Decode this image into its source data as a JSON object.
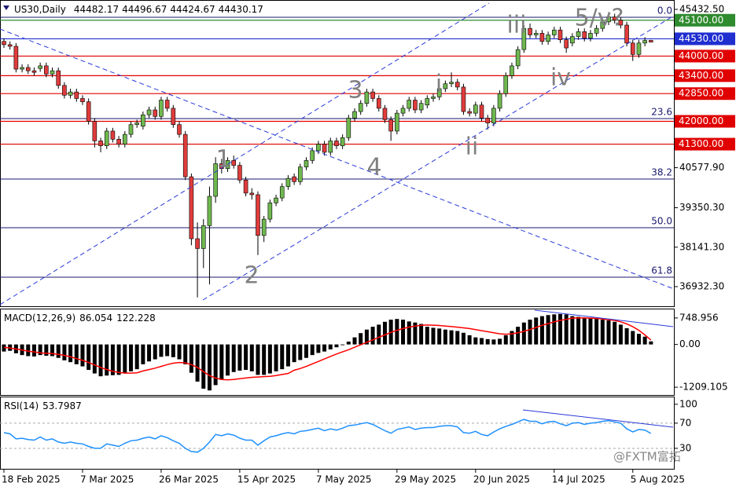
{
  "chart_data": [
    {
      "type": "candlestick",
      "title": "US30,Daily",
      "up_color": "#6fb84f",
      "down_color": "#e03c3c",
      "wick_color": "#000000",
      "categories": [
        "18 Feb 2025",
        null,
        null,
        null,
        null,
        null,
        null,
        null,
        null,
        null,
        null,
        null,
        null,
        "7 Mar 2025",
        null,
        null,
        null,
        null,
        null,
        null,
        null,
        null,
        null,
        null,
        null,
        null,
        "26 Mar 2025",
        null,
        null,
        null,
        null,
        null,
        null,
        null,
        null,
        null,
        null,
        null,
        null,
        "15 Apr 2025",
        null,
        null,
        null,
        null,
        null,
        null,
        null,
        null,
        null,
        null,
        null,
        null,
        "7 May 2025",
        null,
        null,
        null,
        null,
        null,
        null,
        null,
        null,
        null,
        null,
        null,
        null,
        "29 May 2025",
        null,
        null,
        null,
        null,
        null,
        null,
        null,
        null,
        null,
        null,
        null,
        null,
        "20 Jun 2025",
        null,
        null,
        null,
        null,
        null,
        null,
        null,
        null,
        null,
        null,
        null,
        null,
        "14 Jul 2025",
        null,
        null,
        null,
        null,
        null,
        null,
        null,
        null,
        null,
        null,
        null,
        null,
        "5 Aug 2025",
        null,
        null,
        null
      ],
      "open": [
        44450,
        44350,
        44300,
        43600,
        43650,
        43550,
        43620,
        43700,
        43450,
        43550,
        43100,
        42800,
        42900,
        42700,
        42600,
        42000,
        41400,
        41250,
        41700,
        41450,
        41300,
        41600,
        41900,
        41850,
        42200,
        42350,
        42150,
        42650,
        42400,
        41900,
        41600,
        40300,
        38400,
        38100,
        38800,
        39700,
        40700,
        40550,
        40800,
        40650,
        40200,
        39800,
        39750,
        38500,
        39000,
        39500,
        39650,
        40000,
        40300,
        40150,
        40600,
        40800,
        41100,
        41300,
        41050,
        41400,
        41250,
        41500,
        42100,
        42300,
        42550,
        42900,
        42700,
        42400,
        42050,
        41700,
        42250,
        42400,
        42650,
        42350,
        42500,
        42700,
        42750,
        43000,
        43150,
        43200,
        43050,
        42300,
        42250,
        42500,
        42100,
        41950,
        42400,
        42850,
        43400,
        43700,
        44200,
        44850,
        44650,
        44700,
        44450,
        44650,
        44800,
        44500,
        44400,
        44600,
        44750,
        44550,
        44700,
        44850,
        45050,
        45200,
        45100,
        44950,
        44400,
        44050,
        44400,
        44482.17
      ],
      "high": [
        44550,
        44450,
        44400,
        43750,
        43750,
        43650,
        43800,
        43800,
        43650,
        43650,
        43200,
        43000,
        43000,
        42800,
        42700,
        42100,
        41500,
        41800,
        41800,
        41550,
        41700,
        42000,
        42050,
        42300,
        42450,
        42450,
        42750,
        42750,
        42500,
        42000,
        41700,
        40400,
        38900,
        39000,
        40000,
        40900,
        40850,
        40900,
        40950,
        40750,
        40300,
        39950,
        39850,
        39100,
        39600,
        39750,
        40100,
        40350,
        40400,
        40700,
        40900,
        41200,
        41400,
        41400,
        41500,
        41500,
        41600,
        42200,
        42400,
        42650,
        43000,
        43000,
        42800,
        42500,
        42150,
        42350,
        42500,
        42750,
        42750,
        42650,
        42800,
        42850,
        43100,
        43250,
        43500,
        43300,
        43150,
        42400,
        42600,
        42600,
        42200,
        42500,
        42950,
        43500,
        43800,
        44300,
        44950,
        45000,
        44800,
        44800,
        44750,
        44900,
        44900,
        44600,
        44700,
        44850,
        44850,
        44800,
        44950,
        45150,
        45350,
        45300,
        45200,
        45050,
        44500,
        44500,
        44580,
        44496.67
      ],
      "low": [
        44250,
        44200,
        43500,
        43500,
        43450,
        43400,
        43520,
        43350,
        43350,
        43000,
        42700,
        42700,
        42600,
        42500,
        41900,
        41200,
        41050,
        41150,
        41350,
        41200,
        41200,
        41500,
        41800,
        41750,
        42100,
        42050,
        42050,
        42300,
        41800,
        41500,
        40200,
        38200,
        36600,
        37500,
        37000,
        39500,
        40400,
        40450,
        40550,
        40100,
        39700,
        39600,
        37900,
        38300,
        38900,
        39400,
        39550,
        39900,
        40050,
        40050,
        40500,
        40700,
        41000,
        40950,
        40950,
        41150,
        41150,
        41400,
        42000,
        42200,
        42450,
        42600,
        42300,
        41950,
        41400,
        41600,
        42150,
        42300,
        42250,
        42250,
        42400,
        42600,
        42650,
        42900,
        43050,
        42950,
        42200,
        42150,
        42150,
        42000,
        41750,
        41850,
        42300,
        42750,
        43300,
        43600,
        44100,
        44550,
        44550,
        44350,
        44350,
        44550,
        44400,
        44100,
        44300,
        44500,
        44450,
        44450,
        44600,
        44750,
        44950,
        45000,
        44850,
        44300,
        43850,
        43950,
        44300,
        44424.67
      ],
      "close": [
        44350,
        44300,
        43600,
        43650,
        43550,
        43500,
        43700,
        43450,
        43550,
        43100,
        42800,
        42900,
        42700,
        42600,
        42000,
        41400,
        41250,
        41700,
        41450,
        41300,
        41600,
        41900,
        41950,
        42200,
        42350,
        42150,
        42650,
        42400,
        41900,
        41600,
        40300,
        38400,
        38100,
        38800,
        39700,
        40700,
        40550,
        40800,
        40650,
        40200,
        39800,
        39750,
        38500,
        39000,
        39500,
        39650,
        40000,
        40250,
        40150,
        40600,
        40800,
        41100,
        41300,
        41050,
        41400,
        41250,
        41500,
        42100,
        42300,
        42550,
        42900,
        42700,
        42400,
        42050,
        41700,
        42250,
        42400,
        42650,
        42350,
        42550,
        42700,
        42750,
        43000,
        43150,
        43200,
        43050,
        42300,
        42250,
        42500,
        42100,
        41950,
        42400,
        42850,
        43400,
        43700,
        44200,
        44850,
        44650,
        44700,
        44450,
        44650,
        44800,
        44500,
        44250,
        44600,
        44750,
        44550,
        44700,
        44850,
        45050,
        45200,
        45100,
        44950,
        44400,
        44050,
        44400,
        44480,
        44430.17
      ],
      "ylim": [
        36330,
        45720
      ],
      "yticks": [
        {
          "value": 45432.5,
          "label": "45432.50"
        },
        {
          "value": 40577.9,
          "label": "40577.90"
        },
        {
          "value": 39350.3,
          "label": "39350.30"
        },
        {
          "value": 38141.3,
          "label": "38141.30"
        },
        {
          "value": 36932.3,
          "label": "36932.30"
        }
      ],
      "levels": [
        {
          "value": 45100,
          "label": "45100.00",
          "color": "#2e8b2e"
        },
        {
          "value": 44530,
          "label": "44530.00",
          "color": "#1f2fd0"
        },
        {
          "value": 44000,
          "label": "44000.00",
          "color": "#e00000"
        },
        {
          "value": 43400,
          "label": "43400.00",
          "color": "#e00000"
        },
        {
          "value": 42850,
          "label": "42850.00",
          "color": "#e00000"
        },
        {
          "value": 42000,
          "label": "42000.00",
          "color": "#e00000"
        },
        {
          "value": 41300,
          "label": "41300.00",
          "color": "#e00000"
        }
      ],
      "fib_color": "#1a1a6e",
      "fib_levels": [
        {
          "value": 45190,
          "label": "0.0"
        },
        {
          "value": 42085,
          "label": "23.6"
        },
        {
          "value": 40231,
          "label": "38.2"
        },
        {
          "value": 38738,
          "label": "50.0"
        },
        {
          "value": 37221,
          "label": "61.8"
        }
      ],
      "annotations": [
        "1",
        "2",
        "3",
        "4",
        "i",
        "ii",
        "iii",
        "iv",
        "5/v?"
      ],
      "watermark": "@FXTM富拓"
    },
    {
      "type": "macd",
      "title": "MACD(12,26,9)",
      "histogram": {
        "color": "#000000",
        "values": [
          -200,
          -180,
          -250,
          -300,
          -330,
          -340,
          -300,
          -320,
          -330,
          -380,
          -450,
          -500,
          -560,
          -620,
          -720,
          -820,
          -900,
          -880,
          -870,
          -860,
          -820,
          -760,
          -700,
          -560,
          -480,
          -420,
          -350,
          -330,
          -360,
          -420,
          -560,
          -800,
          -1050,
          -1250,
          -1300,
          -1150,
          -1000,
          -880,
          -780,
          -740,
          -720,
          -760,
          -860,
          -860,
          -820,
          -760,
          -700,
          -620,
          -500,
          -440,
          -380,
          -300,
          -240,
          -200,
          -140,
          -80,
          -20,
          80,
          200,
          320,
          420,
          500,
          560,
          640,
          700,
          720,
          700,
          650,
          620,
          580,
          500,
          470,
          450,
          420,
          400,
          380,
          330,
          260,
          200,
          180,
          150,
          140,
          160,
          260,
          380,
          500,
          620,
          700,
          760,
          800,
          830,
          850,
          860,
          850,
          800,
          780,
          760,
          740,
          720,
          700,
          680,
          640,
          560,
          460,
          380,
          300,
          220,
          86.054
        ]
      },
      "signal": {
        "color": "#ff0000",
        "values": [
          -80,
          -100,
          -130,
          -160,
          -190,
          -210,
          -240,
          -250,
          -260,
          -280,
          -310,
          -350,
          -400,
          -450,
          -510,
          -580,
          -650,
          -710,
          -760,
          -790,
          -810,
          -810,
          -800,
          -750,
          -710,
          -670,
          -620,
          -570,
          -530,
          -510,
          -520,
          -570,
          -650,
          -770,
          -880,
          -950,
          -990,
          -1000,
          -990,
          -970,
          -950,
          -930,
          -920,
          -910,
          -900,
          -880,
          -850,
          -820,
          -730,
          -680,
          -620,
          -550,
          -480,
          -410,
          -340,
          -270,
          -210,
          -150,
          -80,
          -10,
          60,
          130,
          200,
          270,
          340,
          400,
          450,
          490,
          520,
          540,
          550,
          545,
          535,
          520,
          505,
          490,
          470,
          450,
          420,
          390,
          360,
          330,
          300,
          290,
          300,
          330,
          370,
          420,
          480,
          540,
          590,
          640,
          680,
          710,
          745,
          750,
          750,
          745,
          735,
          720,
          700,
          680,
          640,
          580,
          500,
          400,
          270,
          122.228
        ]
      },
      "ylim": [
        -1429,
        991
      ],
      "yticks": [
        748.956,
        {
          "value": 0,
          "label": "0.00"
        },
        -1209.105
      ]
    },
    {
      "type": "line",
      "title": "RSI(14)",
      "color": "#1e90ff",
      "values": [
        55,
        53,
        45,
        46,
        44,
        43,
        48,
        43,
        45,
        40,
        38,
        40,
        38,
        37,
        33,
        30,
        30,
        37,
        35,
        33,
        38,
        42,
        43,
        46,
        48,
        45,
        50,
        47,
        42,
        38,
        30,
        25,
        24,
        30,
        40,
        52,
        50,
        53,
        51,
        46,
        43,
        43,
        35,
        42,
        48,
        50,
        53,
        55,
        53,
        57,
        58,
        60,
        62,
        58,
        61,
        59,
        62,
        66,
        67,
        69,
        71,
        68,
        63,
        58,
        54,
        60,
        62,
        64,
        60,
        62,
        63,
        63,
        65,
        66,
        66,
        64,
        55,
        54,
        57,
        52,
        50,
        56,
        61,
        65,
        68,
        72,
        76,
        73,
        73,
        69,
        72,
        73,
        69,
        66,
        70,
        71,
        68,
        70,
        71,
        73,
        74,
        72,
        70,
        61,
        56,
        60,
        59,
        53.7987
      ],
      "ylim": [
        -2.5,
        111
      ],
      "yticks": [
        100,
        70,
        30
      ],
      "levels": [
        70,
        30
      ]
    }
  ]
}
